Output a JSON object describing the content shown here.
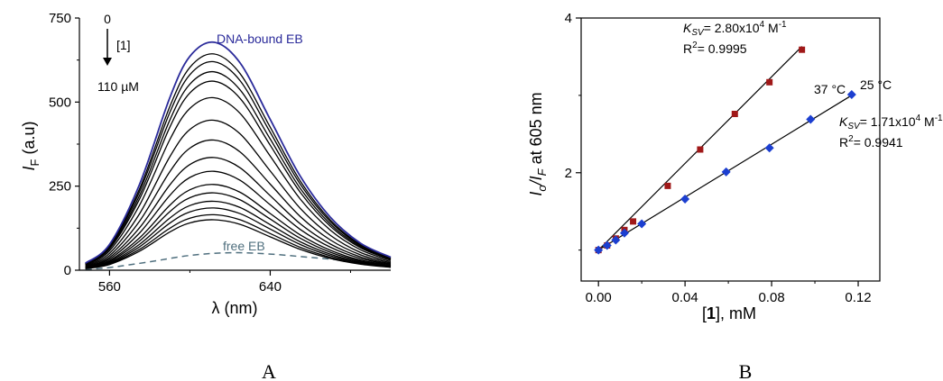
{
  "chart_data": [
    {
      "panel": "A",
      "type": "line",
      "xlabel": "λ (nm)",
      "ylabel": "I_F (a.u)",
      "xlim": [
        545,
        700
      ],
      "ylim": [
        0,
        750
      ],
      "x_ticks": [
        560,
        640
      ],
      "y_ticks": [
        0,
        250,
        500,
        750
      ],
      "peak_x": 612,
      "spectrum_x": [
        548,
        560,
        575,
        590,
        600,
        612,
        625,
        640,
        655,
        670,
        685,
        700
      ],
      "spectrum_shape": [
        0.031,
        0.113,
        0.378,
        0.757,
        0.938,
        1.0,
        0.909,
        0.661,
        0.412,
        0.232,
        0.118,
        0.057
      ],
      "series": [
        {
          "name": "DNA-bound EB",
          "peak": 678,
          "color": "#2a2a9a"
        },
        {
          "peak": 643,
          "color": "#000000"
        },
        {
          "peak": 620,
          "color": "#000000"
        },
        {
          "peak": 590,
          "color": "#000000"
        },
        {
          "peak": 562,
          "color": "#000000"
        },
        {
          "peak": 513,
          "color": "#000000"
        },
        {
          "peak": 446,
          "color": "#000000"
        },
        {
          "peak": 387,
          "color": "#000000"
        },
        {
          "peak": 335,
          "color": "#000000"
        },
        {
          "peak": 294,
          "color": "#000000"
        },
        {
          "peak": 255,
          "color": "#000000"
        },
        {
          "peak": 230,
          "color": "#000000"
        },
        {
          "peak": 205,
          "color": "#000000"
        },
        {
          "peak": 185,
          "color": "#000000"
        },
        {
          "peak": 165,
          "color": "#000000"
        },
        {
          "peak": 150,
          "color": "#000000"
        }
      ],
      "free_eb": {
        "name": "free EB",
        "color": "#4f6f7e",
        "x": [
          548,
          560,
          580,
          600,
          620,
          640,
          660,
          680,
          700
        ],
        "y": [
          2,
          8,
          25,
          44,
          52,
          48,
          38,
          28,
          20
        ]
      },
      "annotations": {
        "start": "0",
        "reagent": "[1]",
        "end": "110 µM",
        "bound_label": "DNA-bound EB",
        "free_label": "free EB"
      },
      "panel_label": "A"
    },
    {
      "panel": "B",
      "type": "scatter",
      "xlabel": "[1], mM",
      "ylabel": "Io/IF at 605 nm",
      "xlim": [
        -0.008,
        0.13
      ],
      "ylim": [
        0.6,
        4.0
      ],
      "x_ticks": [
        "0.00",
        "0.04",
        "0.08",
        "0.12"
      ],
      "y_ticks": [
        2,
        4
      ],
      "series": [
        {
          "name": "37 °C",
          "color": "#a01818",
          "marker": "square",
          "x": [
            0.0,
            0.004,
            0.008,
            0.012,
            0.016,
            0.032,
            0.047,
            0.063,
            0.079,
            0.094
          ],
          "y": [
            1.0,
            1.06,
            1.15,
            1.26,
            1.37,
            1.83,
            2.3,
            2.76,
            3.17,
            3.59
          ],
          "fit": {
            "intercept": 1.0,
            "slope": 28.0
          },
          "ksv_label": "KSV= 2.80x10⁴ M⁻¹",
          "r2_label": "R²= 0.9995"
        },
        {
          "name": "25 °C",
          "color": "#1c3fd0",
          "marker": "diamond",
          "x": [
            0.0,
            0.004,
            0.008,
            0.012,
            0.02,
            0.04,
            0.059,
            0.079,
            0.098,
            0.117
          ],
          "y": [
            1.0,
            1.06,
            1.13,
            1.22,
            1.34,
            1.66,
            2.01,
            2.32,
            2.69,
            3.01
          ],
          "fit": {
            "intercept": 1.0,
            "slope": 17.1
          },
          "ksv_label": "KSV= 1.71x10⁴ M⁻¹",
          "r2_label": "R²= 0.9941"
        }
      ],
      "panel_label": "B"
    }
  ]
}
